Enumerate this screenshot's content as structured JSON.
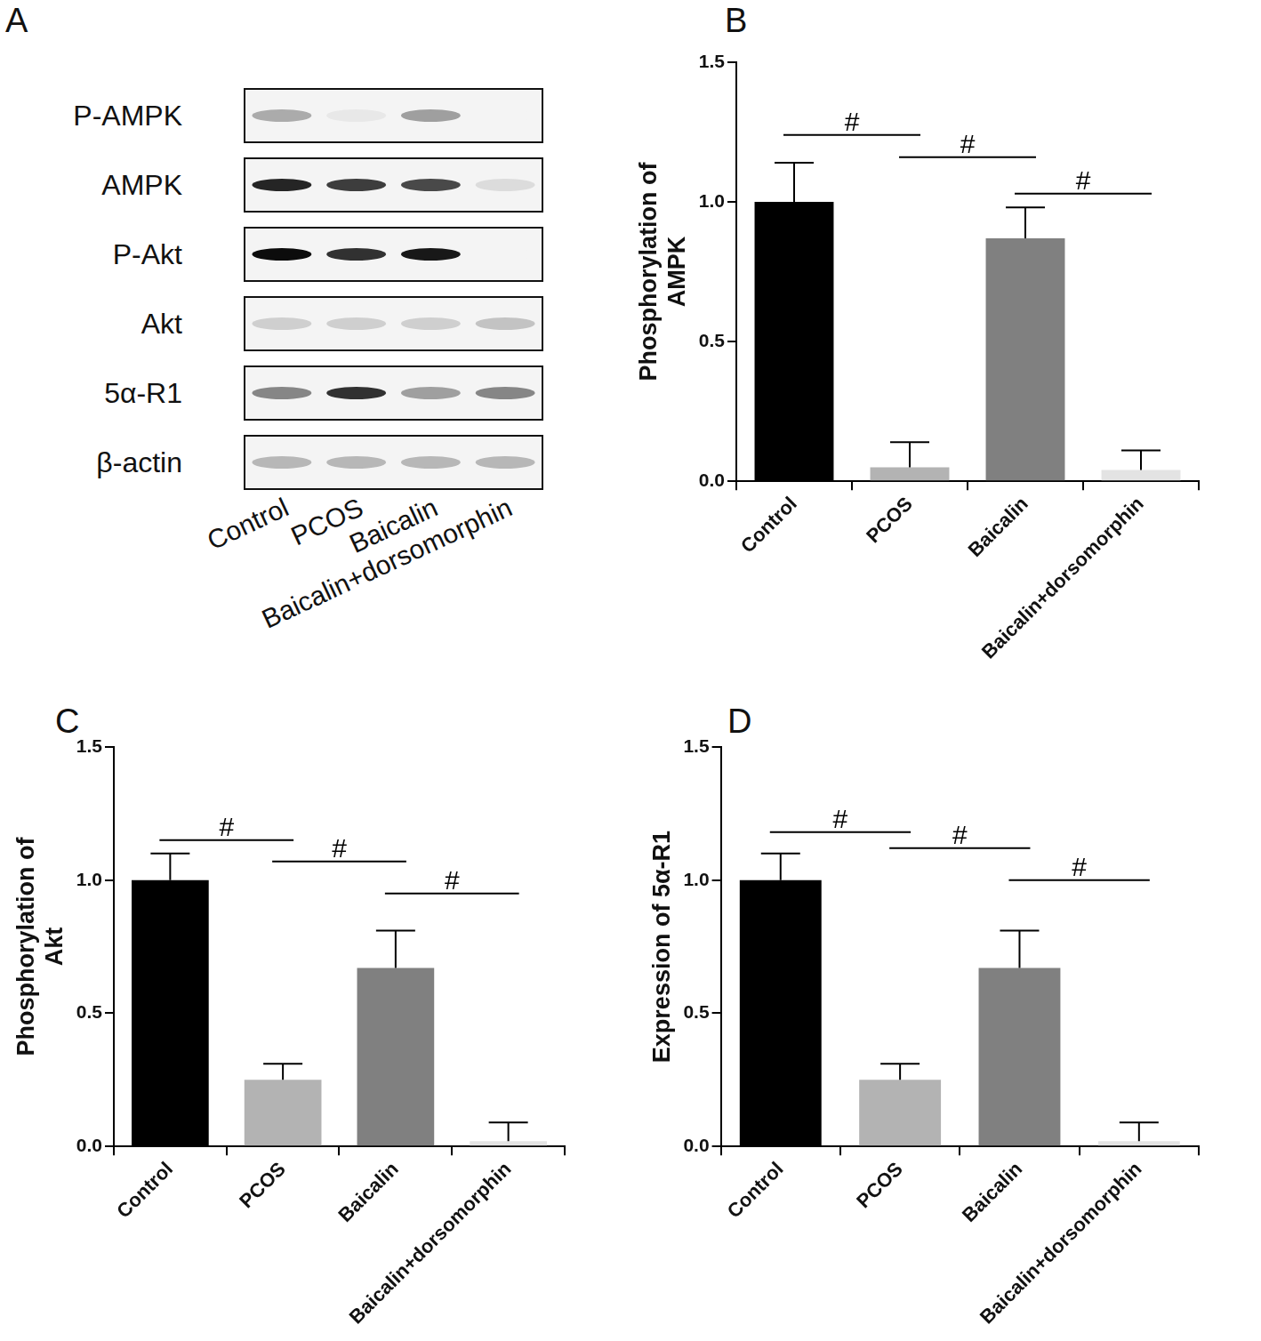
{
  "blot": {
    "panel": "A",
    "rows": [
      {
        "label": "P-AMPK",
        "intensity": [
          0.3,
          0.05,
          0.35,
          0.0
        ]
      },
      {
        "label": "AMPK",
        "intensity": [
          0.85,
          0.75,
          0.7,
          0.1
        ]
      },
      {
        "label": "P-Akt",
        "intensity": [
          0.95,
          0.8,
          0.9,
          0.0
        ]
      },
      {
        "label": "Akt",
        "intensity": [
          0.15,
          0.15,
          0.15,
          0.2
        ]
      },
      {
        "label": "5α-R1",
        "intensity": [
          0.45,
          0.8,
          0.35,
          0.45
        ]
      },
      {
        "label": "β-actin",
        "intensity": [
          0.25,
          0.25,
          0.25,
          0.25
        ]
      }
    ],
    "lanes": [
      "Control",
      "PCOS",
      "Baicalin",
      "Baicalin+dorsomorphin"
    ]
  },
  "chart_data": [
    {
      "panel": "B",
      "type": "bar",
      "y_label": [
        "Phosphorylation of",
        "AMPK"
      ],
      "categories": [
        "Control",
        "PCOS",
        "Baicalin",
        "Baicalin+dorsomorphin"
      ],
      "values": [
        1.0,
        0.05,
        0.87,
        0.04
      ],
      "errors": [
        0.14,
        0.09,
        0.11,
        0.07
      ],
      "colors": [
        "#000000",
        "#b3b3b3",
        "#808080",
        "#e3e3e3"
      ],
      "ylim": [
        0,
        1.5
      ],
      "yticks": [
        {
          "value": 0,
          "label": "0.0"
        },
        {
          "value": 0.5,
          "label": "0.5"
        },
        {
          "value": 1.0,
          "label": "1.0"
        },
        {
          "value": 1.5,
          "label": "1.5"
        }
      ],
      "grid": false,
      "annotations": [
        {
          "from": "Control",
          "to": "PCOS",
          "y": 1.24,
          "text": "#"
        },
        {
          "from": "PCOS",
          "to": "Baicalin",
          "y": 1.16,
          "text": "#"
        },
        {
          "from": "Baicalin",
          "to": "Baicalin+dorsomorphin",
          "y": 1.03,
          "text": "#"
        }
      ]
    },
    {
      "panel": "C",
      "type": "bar",
      "y_label": [
        "Phosphorylation of",
        "Akt"
      ],
      "categories": [
        "Control",
        "PCOS",
        "Baicalin",
        "Baicalin+dorsomorphin"
      ],
      "values": [
        1.0,
        0.25,
        0.67,
        0.02
      ],
      "errors": [
        0.1,
        0.06,
        0.14,
        0.07
      ],
      "colors": [
        "#000000",
        "#b3b3b3",
        "#808080",
        "#e3e3e3"
      ],
      "ylim": [
        0,
        1.5
      ],
      "yticks": [
        {
          "value": 0,
          "label": "0.0"
        },
        {
          "value": 0.5,
          "label": "0.5"
        },
        {
          "value": 1.0,
          "label": "1.0"
        },
        {
          "value": 1.5,
          "label": "1.5"
        }
      ],
      "grid": false,
      "annotations": [
        {
          "from": "Control",
          "to": "PCOS",
          "y": 1.15,
          "text": "#"
        },
        {
          "from": "PCOS",
          "to": "Baicalin",
          "y": 1.07,
          "text": "#"
        },
        {
          "from": "Baicalin",
          "to": "Baicalin+dorsomorphin",
          "y": 0.95,
          "text": "#"
        }
      ]
    },
    {
      "panel": "D",
      "type": "bar",
      "y_label": [
        "Expression of 5α-R1"
      ],
      "categories": [
        "Control",
        "PCOS",
        "Baicalin",
        "Baicalin+dorsomorphin"
      ],
      "values": [
        1.0,
        0.25,
        0.67,
        0.02
      ],
      "errors": [
        0.1,
        0.06,
        0.14,
        0.07
      ],
      "colors": [
        "#000000",
        "#b3b3b3",
        "#808080",
        "#e3e3e3"
      ],
      "ylim": [
        0,
        1.5
      ],
      "yticks": [
        {
          "value": 0,
          "label": "0.0"
        },
        {
          "value": 0.5,
          "label": "0.5"
        },
        {
          "value": 1.0,
          "label": "1.0"
        },
        {
          "value": 1.5,
          "label": "1.5"
        }
      ],
      "grid": false,
      "annotations": [
        {
          "from": "Control",
          "to": "PCOS",
          "y": 1.18,
          "text": "#"
        },
        {
          "from": "PCOS",
          "to": "Baicalin",
          "y": 1.12,
          "text": "#"
        },
        {
          "from": "Baicalin",
          "to": "Baicalin+dorsomorphin",
          "y": 1.0,
          "text": "#"
        }
      ]
    }
  ]
}
